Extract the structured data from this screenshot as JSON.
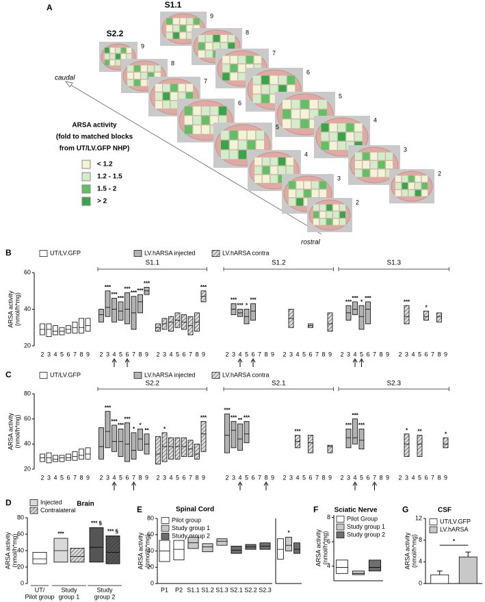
{
  "panel_a": {
    "label": "A",
    "rows": [
      {
        "title": "S1.1",
        "slices": [
          "9",
          "8",
          "7",
          "6",
          "5",
          "4",
          "3",
          "2"
        ]
      },
      {
        "title": "S2.2",
        "slices": [
          "9",
          "8",
          "7",
          "6",
          "5",
          "4",
          "3",
          "2"
        ]
      }
    ],
    "axis": {
      "start": "caudal",
      "end": "rostral"
    },
    "legend": {
      "title": [
        "ARSA activity",
        "(fold to matched blocks",
        "from UT/LV.GFP NHP)"
      ],
      "items": [
        {
          "label": "< 1.2",
          "color": "#f3f3d6"
        },
        {
          "label": "1.2 - 1.5",
          "color": "#d4edc9"
        },
        {
          "label": "1.5 - 2",
          "color": "#5fc15f"
        },
        {
          "label": "> 2",
          "color": "#35a845"
        }
      ]
    }
  },
  "chart_data": [
    {
      "type": "box",
      "label": "B",
      "y_label": [
        "ARSA activity",
        "(nmol/h*mg)"
      ],
      "ylim": [
        20,
        60
      ],
      "yticks": [
        20,
        40,
        60
      ],
      "categories": [
        "2",
        "3",
        "4",
        "5",
        "6",
        "7",
        "8",
        "9"
      ],
      "series": [
        {
          "name": "UT/LV.GFP",
          "color": "#ffffff"
        },
        {
          "name": "LV.hARSA injected",
          "color": "#b3b3b3"
        },
        {
          "name": "LV.hARSA contra",
          "color": "#dddddd",
          "hatch": true
        }
      ],
      "control": {
        "low": [
          26,
          25,
          26,
          26,
          27,
          27,
          27,
          28
        ],
        "median": [
          29,
          29,
          28,
          28,
          29,
          30,
          30,
          31
        ],
        "high": [
          32,
          32,
          31,
          30,
          31,
          33,
          35,
          35
        ]
      },
      "sections": [
        {
          "title": "S1.1",
          "arrows": [
            2,
            4
          ],
          "injected": {
            "low": [
              33,
              36,
              33,
              34,
              32,
              29,
              38,
              48
            ],
            "median": [
              37,
              41,
              40,
              39,
              40,
              38,
              44,
              50
            ],
            "high": [
              40,
              50,
              46,
              44,
              49,
              47,
              48,
              52
            ],
            "stars": [
              null,
              "***",
              "***",
              "***",
              "***",
              "***",
              "***",
              "***"
            ]
          },
          "contra": {
            "low": [
              28,
              29,
              28,
              30,
              29,
              26,
              28,
              44
            ],
            "median": [
              30,
              32,
              33,
              34,
              33,
              31,
              33,
              47
            ],
            "high": [
              32,
              35,
              36,
              38,
              37,
              36,
              38,
              50
            ],
            "stars": [
              null,
              null,
              null,
              null,
              null,
              null,
              null,
              "***"
            ]
          }
        },
        {
          "title": "S1.2",
          "arrows": [
            2,
            4
          ],
          "injected": {
            "low": [
              null,
              37,
              36,
              32,
              34,
              null,
              null,
              null
            ],
            "median": [
              null,
              40,
              38,
              36,
              39,
              null,
              null,
              null
            ],
            "high": [
              null,
              43,
              40,
              40,
              43,
              null,
              null,
              null
            ],
            "stars": [
              null,
              "***",
              "***",
              "*",
              "***",
              null,
              null,
              null
            ]
          },
          "contra": {
            "low": [
              null,
              30,
              null,
              null,
              30,
              null,
              null,
              28
            ],
            "median": [
              null,
              35,
              null,
              null,
              31,
              null,
              null,
              32
            ],
            "high": [
              null,
              40,
              null,
              null,
              32,
              null,
              null,
              38
            ],
            "stars": [
              null,
              null,
              null,
              null,
              null,
              null,
              null,
              null
            ]
          }
        },
        {
          "title": "S1.3",
          "arrows": [
            2,
            3
          ],
          "injected": {
            "low": [
              null,
              34,
              37,
              29,
              32,
              null,
              null,
              null
            ],
            "median": [
              null,
              38,
              40,
              36,
              40,
              null,
              null,
              null
            ],
            "high": [
              null,
              42,
              44,
              42,
              44,
              null,
              null,
              null
            ],
            "stars": [
              null,
              "***",
              "***",
              "*",
              "***",
              null,
              null,
              null
            ]
          },
          "contra": {
            "low": [
              null,
              32,
              null,
              null,
              34,
              null,
              33,
              null
            ],
            "median": [
              null,
              36,
              null,
              null,
              36,
              null,
              36,
              null
            ],
            "high": [
              null,
              42,
              null,
              null,
              39,
              null,
              38,
              null
            ],
            "stars": [
              null,
              "***",
              null,
              null,
              "*",
              null,
              null,
              null
            ]
          }
        }
      ]
    },
    {
      "type": "box",
      "label": "C",
      "y_label": [
        "ARSA activity",
        "(nmol/h*mg)"
      ],
      "ylim": [
        20,
        80
      ],
      "yticks": [
        20,
        40,
        60,
        80
      ],
      "categories": [
        "2",
        "3",
        "4",
        "5",
        "6",
        "7",
        "8",
        "9"
      ],
      "series": [
        {
          "name": "UT/LV.GFP",
          "color": "#ffffff"
        },
        {
          "name": "LV.hARSA injected",
          "color": "#b3b3b3"
        },
        {
          "name": "LV.hARSA contra",
          "color": "#dddddd",
          "hatch": true
        }
      ],
      "control": {
        "low": [
          26,
          25,
          26,
          26,
          27,
          27,
          28,
          28
        ],
        "median": [
          29,
          29,
          28,
          29,
          29,
          30,
          31,
          32
        ],
        "high": [
          32,
          33,
          31,
          31,
          32,
          34,
          36,
          37
        ]
      },
      "sections": [
        {
          "title": "S2.2",
          "arrows": [
            2,
            5
          ],
          "injected": {
            "low": [
              28,
              37,
              34,
              30,
              26,
              28,
              35,
              32
            ],
            "median": [
              38,
              50,
              42,
              42,
              40,
              35,
              44,
              40
            ],
            "high": [
              53,
              66,
              55,
              52,
              57,
              49,
              52,
              48
            ],
            "stars": [
              null,
              "***",
              "***",
              "***",
              "***",
              "*",
              "*",
              "**"
            ]
          },
          "contra": {
            "low": [
              24,
              26,
              28,
              28,
              30,
              30,
              28,
              34
            ],
            "median": [
              32,
              38,
              38,
              38,
              38,
              36,
              32,
              48
            ],
            "high": [
              46,
              49,
              45,
              45,
              45,
              43,
              40,
              58
            ],
            "stars": [
              null,
              "*",
              null,
              null,
              null,
              null,
              null,
              "***"
            ]
          }
        },
        {
          "title": "S2.1",
          "arrows": [
            2,
            6
          ],
          "injected": {
            "low": [
              33,
              37,
              35,
              41,
              null,
              null,
              null,
              null
            ],
            "median": [
              47,
              51,
              44,
              48,
              null,
              null,
              null,
              null
            ],
            "high": [
              64,
              58,
              56,
              58,
              null,
              null,
              null,
              null
            ],
            "stars": [
              "***",
              "***",
              "**",
              "***",
              null,
              null,
              null,
              null
            ]
          },
          "contra": {
            "low": [
              null,
              null,
              37,
              null,
              33,
              null,
              null,
              33
            ],
            "median": [
              null,
              null,
              42,
              null,
              41,
              null,
              null,
              38
            ],
            "high": [
              null,
              null,
              47,
              null,
              47,
              null,
              null,
              39
            ],
            "stars": [
              null,
              null,
              "***",
              null,
              null,
              null,
              null,
              null
            ]
          }
        },
        {
          "title": "S2.3",
          "arrows": [
            2,
            5
          ],
          "injected": {
            "low": [
              null,
              37,
              40,
              36,
              null,
              null,
              null,
              null
            ],
            "median": [
              null,
              45,
              45,
              43,
              null,
              null,
              null,
              null
            ],
            "high": [
              null,
              52,
              60,
              52,
              null,
              null,
              null,
              null
            ],
            "stars": [
              null,
              "***",
              "***",
              "***",
              null,
              null,
              null,
              null
            ]
          },
          "contra": {
            "low": [
              null,
              30,
              null,
              30,
              null,
              null,
              null,
              37
            ],
            "median": [
              null,
              40,
              null,
              40,
              null,
              null,
              null,
              40
            ],
            "high": [
              null,
              48,
              null,
              47,
              null,
              null,
              null,
              45
            ],
            "stars": [
              null,
              "*",
              null,
              "**",
              null,
              null,
              null,
              "*"
            ]
          }
        }
      ]
    },
    {
      "type": "box",
      "label": "D",
      "title": "Brain",
      "y_label": [
        "ARSA activity",
        "(nmol/h*mg)"
      ],
      "ylim": [
        0,
        80
      ],
      "yticks": [
        0,
        20,
        40,
        60,
        80
      ],
      "series": [
        {
          "name": "Injected",
          "color": "#d9d9d9"
        },
        {
          "name": "Contralateral",
          "color": "#d9d9d9",
          "hatch": true
        }
      ],
      "groups": [
        {
          "label": [
            "UT/",
            "Pilot group"
          ],
          "boxes": [
            {
              "low": 24,
              "median": 30,
              "high": 38,
              "color": "#ffffff"
            }
          ]
        },
        {
          "label": [
            "Study",
            "group 1"
          ],
          "boxes": [
            {
              "low": 26,
              "median": 40,
              "high": 55,
              "color": "#d9d9d9",
              "annotation": "***"
            },
            {
              "low": 26,
              "median": 33,
              "high": 43,
              "color": "#d9d9d9",
              "hatch": true
            }
          ]
        },
        {
          "label": [
            "Study",
            "group 2"
          ],
          "boxes": [
            {
              "low": 26,
              "median": 44,
              "high": 68,
              "color": "#555555",
              "annotation": "*** §"
            },
            {
              "low": 24,
              "median": 38,
              "high": 58,
              "color": "#555555",
              "hatch": true,
              "annotation": "*** §"
            }
          ]
        }
      ]
    },
    {
      "type": "box",
      "label": "E",
      "title": "Spinal Cord",
      "y_label": [
        "ARSA activity",
        "(nmol/h*mg)"
      ],
      "ylim": [
        0,
        80
      ],
      "yticks": [
        0,
        20,
        40,
        60,
        80
      ],
      "series": [
        {
          "name": "Pilot group",
          "color": "#ffffff"
        },
        {
          "name": "Study group 1",
          "color": "#c8c8c8"
        },
        {
          "name": "Study group 2",
          "color": "#6e6e6e"
        }
      ],
      "categories": [
        "P1",
        "P2",
        "S1.1",
        "S1.2",
        "S1.3",
        "S2.1",
        "S2.2",
        "S2.3"
      ],
      "boxes": [
        {
          "low": 27,
          "median": 40,
          "high": 53,
          "color": "#ffffff"
        },
        {
          "low": 29,
          "median": 42,
          "high": 53,
          "color": "#ffffff"
        },
        {
          "low": 43,
          "median": 50,
          "high": 57,
          "color": "#c8c8c8"
        },
        {
          "low": 39,
          "median": 45,
          "high": 49,
          "color": "#c8c8c8"
        },
        {
          "low": 47,
          "median": 52,
          "high": 55,
          "color": "#c8c8c8"
        },
        {
          "low": 37,
          "median": 41,
          "high": 46,
          "color": "#6e6e6e"
        },
        {
          "low": 42,
          "median": 45,
          "high": 48,
          "color": "#6e6e6e"
        },
        {
          "low": 42,
          "median": 46,
          "high": 50,
          "color": "#6e6e6e"
        }
      ],
      "summary": [
        {
          "low": 30,
          "median": 42,
          "high": 55,
          "color": "#ffffff"
        },
        {
          "low": 40,
          "median": 47,
          "high": 57,
          "color": "#c8c8c8",
          "annotation": "*"
        },
        {
          "low": 37,
          "median": 42,
          "high": 50,
          "color": "#6e6e6e"
        }
      ]
    },
    {
      "type": "box",
      "label": "F",
      "title": "Sciatic Nerve",
      "y_label": [
        "ARSA activity",
        "(nmol/h*mg)"
      ],
      "ylim": [
        2.8,
        8.2
      ],
      "yticks": [
        4,
        6,
        8
      ],
      "series": [
        {
          "name": "Pilot Group",
          "color": "#ffffff"
        },
        {
          "name": "Study group 1",
          "color": "#c8c8c8"
        },
        {
          "name": "Study group 2",
          "color": "#6e6e6e"
        }
      ],
      "boxes": [
        {
          "low": 3.4,
          "median": 3.9,
          "high": 4.5,
          "color": "#ffffff"
        },
        {
          "low": 3.3,
          "median": 3.4,
          "high": 3.6,
          "color": "#c8c8c8"
        },
        {
          "low": 3.6,
          "median": 3.9,
          "high": 4.5,
          "color": "#6e6e6e"
        }
      ]
    },
    {
      "type": "bar",
      "label": "G",
      "title": "CSF",
      "y_label": [
        "ARSA activity",
        "(nmol/h*mg)"
      ],
      "ylim": [
        0,
        12
      ],
      "yticks": [
        0,
        4,
        8,
        12
      ],
      "series": [
        {
          "name": "UT/LV.GFP",
          "color": "#ffffff",
          "values": [
            1.6
          ],
          "errors": [
            0.7
          ]
        },
        {
          "name": "LV.hARSA",
          "color": "#c8c8c8",
          "values": [
            4.9
          ],
          "errors": [
            0.9
          ]
        }
      ],
      "annotation": "*"
    }
  ]
}
